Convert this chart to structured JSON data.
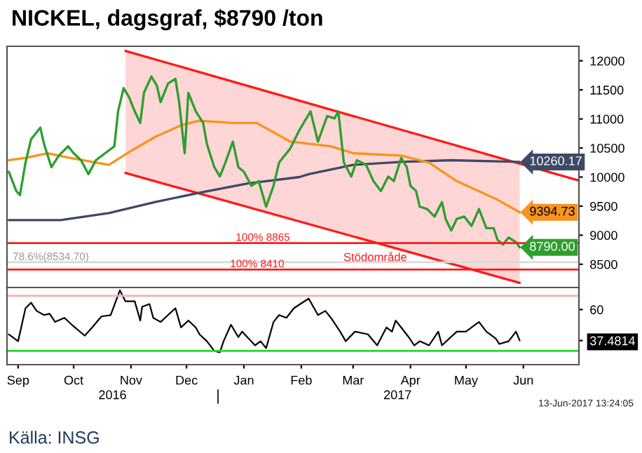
{
  "chart_data": [
    {
      "type": "line",
      "title": "NICKEL, dagsgraf, $8790 /ton",
      "xlim": [
        "2016-09-09",
        "2017-07-15"
      ],
      "ylim": [
        8100,
        12250
      ],
      "yticks": [
        8500,
        9000,
        9500,
        10000,
        10500,
        11000,
        11500,
        12000
      ],
      "tick_labels": "y",
      "grid": false,
      "legend": false,
      "series": [
        {
          "color": "#ff1a1a",
          "x": [
            "2016-11-12",
            "2017-06-13"
          ],
          "values": [
            10070,
            8180
          ],
          "lower": [
            10070,
            8180
          ],
          "upper": [
            12170,
            10230
          ]
        },
        {
          "color": "#ff1a1a",
          "x": [
            "2016-11-12",
            "2017-07-15"
          ],
          "values": [
            12170,
            9940
          ]
        },
        {
          "color": "#3d4a66",
          "x": [
            "2016-09-10",
            "2016-10-08",
            "2016-11-03",
            "2016-11-28",
            "2016-12-22",
            "2017-01-17",
            "2017-02-14",
            "2017-02-19",
            "2017-03-15",
            "2017-04-10",
            "2017-05-07",
            "2017-06-13"
          ],
          "values": [
            9260,
            9260,
            9380,
            9570,
            9730,
            9890,
            10000,
            10050,
            10210,
            10260,
            10290,
            10260.17
          ],
          "value_labels": [
            null,
            null,
            null,
            null,
            null,
            null,
            null,
            null,
            null,
            null,
            null,
            "10260.17"
          ]
        },
        {
          "color": "#f7941d",
          "x": [
            "2016-09-10",
            "2016-09-19",
            "2016-10-01",
            "2016-10-13",
            "2016-11-03",
            "2016-11-15",
            "2016-11-28",
            "2016-12-12",
            "2016-12-22",
            "2017-01-09",
            "2017-01-22",
            "2017-02-09",
            "2017-03-03",
            "2017-03-15",
            "2017-04-10",
            "2017-04-25",
            "2017-05-10",
            "2017-06-01",
            "2017-06-13"
          ],
          "values": [
            10290,
            10330,
            10410,
            10330,
            10210,
            10450,
            10690,
            10890,
            10970,
            10930,
            10930,
            10610,
            10530,
            10410,
            10370,
            10250,
            9930,
            9610,
            9394.73
          ],
          "value_labels": [
            null,
            null,
            null,
            null,
            null,
            null,
            null,
            null,
            null,
            null,
            null,
            null,
            null,
            null,
            null,
            null,
            null,
            null,
            "9394.73"
          ]
        },
        {
          "color": "#2f9e2f",
          "x": [
            "2016-09-10",
            "2016-09-14",
            "2016-09-16",
            "2016-09-19",
            "2016-09-22",
            "2016-09-27",
            "2016-09-29",
            "2016-10-03",
            "2016-10-07",
            "2016-10-12",
            "2016-10-15",
            "2016-10-19",
            "2016-10-23",
            "2016-10-27",
            "2016-11-01",
            "2016-11-06",
            "2016-11-08",
            "2016-11-11",
            "2016-11-14",
            "2016-11-17",
            "2016-11-20",
            "2016-11-22",
            "2016-11-26",
            "2016-11-29",
            "2016-12-01",
            "2016-12-05",
            "2016-12-09",
            "2016-12-11",
            "2016-12-14",
            "2016-12-16",
            "2016-12-20",
            "2016-12-24",
            "2016-12-26",
            "2016-12-30",
            "2017-01-02",
            "2017-01-05",
            "2017-01-09",
            "2017-01-12",
            "2017-01-15",
            "2017-01-19",
            "2017-01-23",
            "2017-01-27",
            "2017-01-31",
            "2017-02-03",
            "2017-02-09",
            "2017-02-14",
            "2017-02-20",
            "2017-02-24",
            "2017-03-01",
            "2017-03-05",
            "2017-03-07",
            "2017-03-10",
            "2017-03-14",
            "2017-03-17",
            "2017-03-22",
            "2017-03-26",
            "2017-03-30",
            "2017-04-03",
            "2017-04-06",
            "2017-04-10",
            "2017-04-13",
            "2017-04-15",
            "2017-04-18",
            "2017-04-20",
            "2017-04-24",
            "2017-04-28",
            "2017-05-02",
            "2017-05-04",
            "2017-05-07",
            "2017-05-10",
            "2017-05-14",
            "2017-05-18",
            "2017-05-22",
            "2017-05-26",
            "2017-05-30",
            "2017-06-01",
            "2017-06-04",
            "2017-06-07",
            "2017-06-11",
            "2017-06-13"
          ],
          "values": [
            10090,
            9760,
            9690,
            10250,
            10650,
            10850,
            10570,
            10170,
            10370,
            10530,
            10410,
            10290,
            10050,
            10290,
            10410,
            10530,
            11130,
            11530,
            11370,
            11130,
            10930,
            11450,
            11730,
            11570,
            11290,
            11610,
            11690,
            11290,
            10410,
            11450,
            11130,
            10930,
            10570,
            10170,
            10010,
            10250,
            10610,
            10170,
            10090,
            9850,
            9930,
            9490,
            9850,
            10250,
            10490,
            10810,
            11130,
            10610,
            11050,
            11010,
            11130,
            10250,
            10010,
            10290,
            10210,
            9930,
            9760,
            10010,
            9930,
            10330,
            10170,
            9850,
            9760,
            9490,
            9450,
            9320,
            9570,
            9280,
            9080,
            9280,
            9320,
            9160,
            9450,
            9120,
            9120,
            8920,
            8840,
            8960,
            8880,
            8790
          ],
          "value_labels": [
            null,
            null,
            null,
            null,
            null,
            null,
            null,
            null,
            null,
            null,
            null,
            null,
            null,
            null,
            null,
            null,
            null,
            null,
            null,
            null,
            null,
            null,
            null,
            null,
            null,
            null,
            null,
            null,
            null,
            null,
            null,
            null,
            null,
            null,
            null,
            null,
            null,
            null,
            null,
            null,
            null,
            null,
            null,
            null,
            null,
            null,
            null,
            null,
            null,
            null,
            null,
            null,
            null,
            null,
            null,
            null,
            null,
            null,
            null,
            null,
            null,
            null,
            null,
            null,
            null,
            null,
            null,
            null,
            null,
            null,
            null,
            null,
            null,
            null,
            null,
            null,
            null,
            null,
            null,
            "8790.00"
          ]
        }
      ],
      "ref_lines": [
        {
          "axis": "y",
          "value": 8865,
          "label": "100% 8865",
          "color": "#ff1a1a",
          "line_style": "solid"
        },
        {
          "axis": "y",
          "value": 8534.7,
          "label": "78.6%(8534.70)",
          "color": "#d9d9d9",
          "line_style": "solid"
        },
        {
          "axis": "y",
          "value": 8410,
          "label": "100% 8410",
          "color": "#ff1a1a",
          "line_style": "solid"
        }
      ],
      "annotations": [
        "Stödområde"
      ]
    },
    {
      "type": "line",
      "xlim": [
        "2016-09-09",
        "2017-07-15"
      ],
      "ylim": [
        20,
        76
      ],
      "yticks": [
        60,
        {
          "value": 37.4814,
          "label": "37.4814"
        }
      ],
      "grid": false,
      "legend": false,
      "xticks": [
        {
          "value": "2016-09-15",
          "label": "Sep"
        },
        {
          "value": "2016-10-15",
          "label": "Oct"
        },
        {
          "value": "2016-11-15",
          "label": "Nov"
        },
        {
          "value": "2016-12-15",
          "label": "Dec"
        },
        {
          "value": "2017-01-15",
          "label": "Jan"
        },
        {
          "value": "2017-02-15",
          "label": "Feb"
        },
        {
          "value": "2017-03-15",
          "label": "Mar"
        },
        {
          "value": "2017-04-15",
          "label": "Apr"
        },
        {
          "value": "2017-05-15",
          "label": "May"
        },
        {
          "value": "2017-06-15",
          "label": "Jun"
        }
      ],
      "x2lim": [
        "2016-09-09",
        "2017-07-15"
      ],
      "x2ticks": [
        {
          "value": "2016-11-05",
          "label": "2016"
        },
        {
          "value": "2017-01-01",
          "label": null
        },
        {
          "value": "2017-04-08",
          "label": "2017"
        }
      ],
      "series": [
        {
          "color": "#000000",
          "x": [
            "2016-09-10",
            "2016-09-15",
            "2016-09-19",
            "2016-09-22",
            "2016-09-25",
            "2016-09-29",
            "2016-10-02",
            "2016-10-05",
            "2016-10-10",
            "2016-10-14",
            "2016-10-21",
            "2016-10-25",
            "2016-10-30",
            "2016-11-04",
            "2016-11-09",
            "2016-11-12",
            "2016-11-17",
            "2016-11-20",
            "2016-11-21",
            "2016-11-25",
            "2016-11-27",
            "2016-12-01",
            "2016-12-05",
            "2016-12-09",
            "2016-12-12",
            "2016-12-16",
            "2016-12-20",
            "2016-12-22",
            "2016-12-26",
            "2016-12-30",
            "2017-01-02",
            "2017-01-04",
            "2017-01-08",
            "2017-01-12",
            "2017-01-14",
            "2017-01-21",
            "2017-01-24",
            "2017-01-27",
            "2017-01-31",
            "2017-02-03",
            "2017-02-07",
            "2017-02-11",
            "2017-02-19",
            "2017-02-24",
            "2017-02-28",
            "2017-03-03",
            "2017-03-08",
            "2017-03-11",
            "2017-03-16",
            "2017-03-23",
            "2017-03-28",
            "2017-04-02",
            "2017-04-05",
            "2017-04-07",
            "2017-04-10",
            "2017-04-14",
            "2017-04-17",
            "2017-04-20",
            "2017-04-25",
            "2017-04-30",
            "2017-05-02",
            "2017-05-06",
            "2017-05-10",
            "2017-05-15",
            "2017-05-18",
            "2017-05-22",
            "2017-05-26",
            "2017-05-31",
            "2017-06-02",
            "2017-06-07",
            "2017-06-11",
            "2017-06-13"
          ],
          "values": [
            42,
            37,
            61,
            65,
            59,
            56,
            57,
            51,
            54,
            49,
            41,
            47,
            55,
            56,
            74,
            66,
            66,
            52,
            62,
            64,
            54,
            51,
            56,
            61,
            47,
            52,
            47,
            42,
            37,
            30,
            29,
            37,
            49,
            40,
            44,
            34,
            37,
            32,
            51,
            56,
            54,
            61,
            68,
            56,
            59,
            54,
            44,
            37,
            44,
            42,
            34,
            47,
            44,
            52,
            47,
            40,
            34,
            37,
            34,
            44,
            34,
            39,
            44,
            44,
            47,
            51,
            44,
            39,
            35,
            37,
            44,
            37.4814
          ],
          "value_labels": [
            null,
            null,
            null,
            null,
            null,
            null,
            null,
            null,
            null,
            null,
            null,
            null,
            null,
            null,
            null,
            null,
            null,
            null,
            null,
            null,
            null,
            null,
            null,
            null,
            null,
            null,
            null,
            null,
            null,
            null,
            null,
            null,
            null,
            null,
            null,
            null,
            null,
            null,
            null,
            null,
            null,
            null,
            null,
            null,
            null,
            null,
            null,
            null,
            null,
            null,
            null,
            null,
            null,
            null,
            null,
            null,
            null,
            null,
            null,
            null,
            null,
            null,
            null,
            null,
            null,
            null,
            null,
            null,
            null,
            null,
            null,
            null
          ]
        }
      ],
      "ref_lines": [
        {
          "axis": "y",
          "value": 70,
          "color": "#f4b0b0",
          "line_style": "solid"
        },
        {
          "axis": "y",
          "value": 30,
          "color": "#22dd22",
          "line_style": "solid"
        }
      ],
      "annotations": [
        "13-Jun-2017 13:24:05",
        "Källa: INSG"
      ]
    }
  ]
}
